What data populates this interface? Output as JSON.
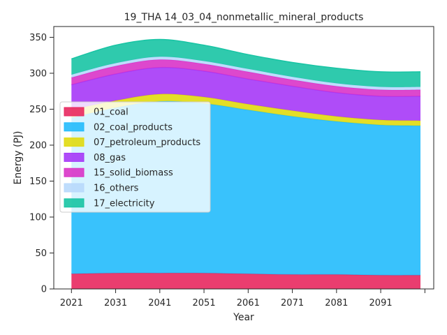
{
  "chart_data": {
    "type": "area",
    "stacked": true,
    "title": "19_THA 14_03_04_nonmetallic_mineral_products",
    "xlabel": "Year",
    "ylabel": "Energy (PJ)",
    "xlim": [
      2017,
      2103
    ],
    "ylim": [
      0,
      365
    ],
    "x_ticks": [
      2021,
      2031,
      2041,
      2051,
      2061,
      2071,
      2081,
      2091,
      2101
    ],
    "x_tick_labels": [
      "2021",
      "2031",
      "2041",
      "2051",
      "2061",
      "2071",
      "2081",
      "2091",
      ""
    ],
    "y_ticks": [
      0,
      50,
      100,
      150,
      200,
      250,
      300,
      350
    ],
    "legend_position": "center-left",
    "grid": false,
    "x": [
      2021,
      2031,
      2041,
      2051,
      2061,
      2071,
      2081,
      2091,
      2100
    ],
    "series": [
      {
        "name": "01_coal",
        "color": "#e8285f",
        "values": [
          21,
          22,
          22,
          22,
          21,
          20,
          20,
          19,
          19
        ]
      },
      {
        "name": "02_coal_products",
        "color": "#23bbfc",
        "values": [
          217,
          230,
          239,
          236,
          228,
          220,
          213,
          209,
          208
        ]
      },
      {
        "name": "07_petroleum_products",
        "color": "#e1da0f",
        "values": [
          11,
          10,
          10,
          9,
          8,
          8,
          7,
          7,
          7
        ]
      },
      {
        "name": "08_gas",
        "color": "#a638f7",
        "values": [
          35,
          37,
          37,
          36,
          35,
          34,
          33,
          33,
          34
        ]
      },
      {
        "name": "15_solid_biomass",
        "color": "#d934c8",
        "values": [
          10,
          11,
          11,
          10,
          10,
          9,
          9,
          9,
          9
        ]
      },
      {
        "name": "16_others",
        "color": "#b8d9fc",
        "values": [
          4,
          4,
          4,
          4,
          4,
          4,
          4,
          4,
          4
        ]
      },
      {
        "name": "17_electricity",
        "color": "#18c4a4",
        "values": [
          22,
          25,
          24,
          22,
          20,
          20,
          21,
          21,
          21
        ]
      }
    ]
  }
}
